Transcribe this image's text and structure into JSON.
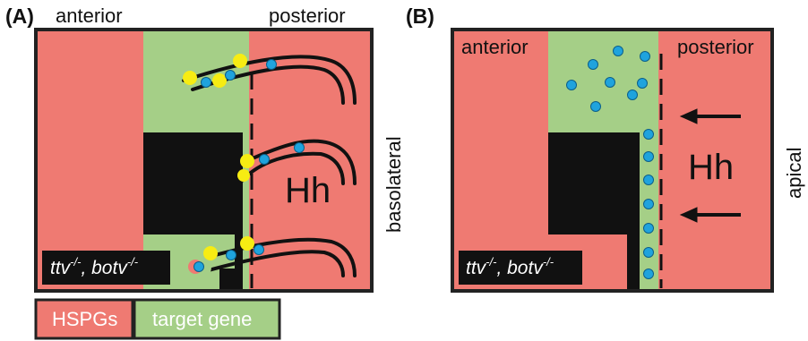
{
  "panel_a": {
    "label": "(A)",
    "anterior": "anterior",
    "posterior": "posterior",
    "side": "basolateral",
    "ligand": "Hh",
    "genotype": [
      "ttv",
      "-/-",
      ", botv",
      "-/-"
    ]
  },
  "panel_b": {
    "label": "(B)",
    "anterior": "anterior",
    "posterior": "posterior",
    "side": "apical",
    "ligand": "Hh",
    "genotype": [
      "ttv",
      "-/-",
      ", botv",
      "-/-"
    ]
  },
  "legend": {
    "hspgs": "HSPGs",
    "target_gene": "target gene"
  }
}
